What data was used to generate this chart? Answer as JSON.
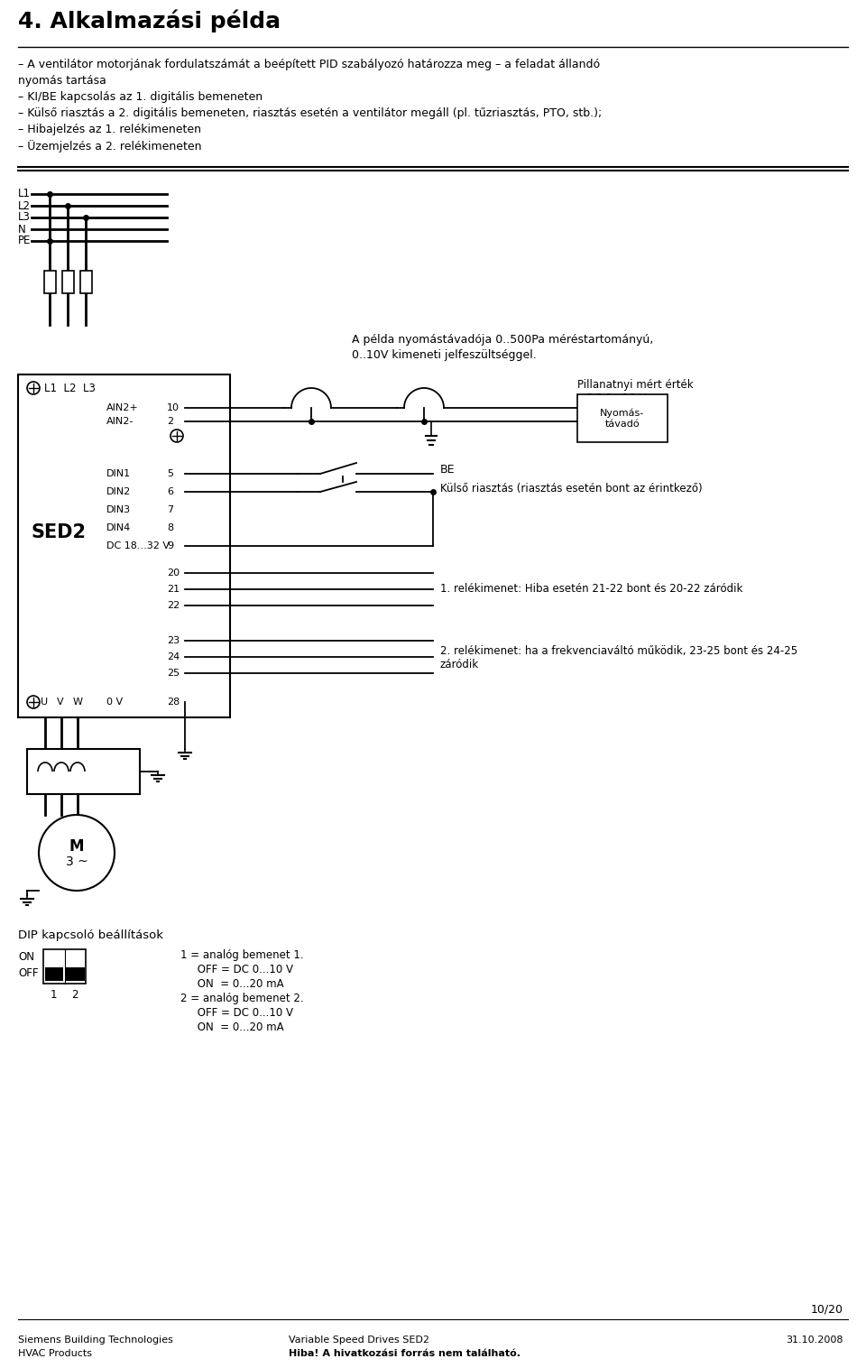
{
  "title": "4. Alkalmazási példa",
  "title_fontsize": 18,
  "background_color": "#ffffff",
  "text_color": "#000000",
  "intro_lines": [
    "– A ventilátor motorjának fordulatszámát a beépített PID szabályozó határozza meg – a feladat állandó",
    "nyomás tartása",
    "– KI/BE kapcsolás az 1. digitális bemeneten",
    "– Külső riasztás a 2. digitális bemeneten, riasztás esetén a ventilátor megáll (pl. tűzriasztás, PTO, stb.);",
    "– Hibajelzés az 1. relékimeneten",
    "– Üzemjelzés a 2. relékimeneten"
  ],
  "pressure_note_line1": "A példa nyomástávadója 0..500Pa méréstartományú,",
  "pressure_note_line2": "0..10V kimeneti jelfeszültséggel.",
  "pillanatnyi_text": "Pillanatnyi mért érték",
  "dc_text": "DC 0...10 V",
  "nyomas_text": "Nyomás-\ntávadó",
  "be_text": "BE",
  "kulso_text": "Külső riasztás (riasztás esetén bont az érintkező)",
  "relay1_text": "1. relékimenet: Hiba esetén 21-22 bont és 20-22 záródik",
  "relay2_text": "2. relékimenet: ha a frekvenciaváltó működik, 23-25 bont és 24-25",
  "relay2_text2": "záródik",
  "sed2_label": "SED2",
  "dip_title": "DIP kapcsoló beállítások",
  "dip_on": "ON",
  "dip_off": "OFF",
  "dip_1": "1",
  "dip_2": "2",
  "dip_text_line1": "1 = analóg bemenet 1.",
  "dip_text_line2": "     OFF = DC 0...10 V",
  "dip_text_line3": "     ON  = 0...20 mA",
  "dip_text_line4": "2 = analóg bemenet 2.",
  "dip_text_line5": "     OFF = DC 0...10 V",
  "dip_text_line6": "     ON  = 0...20 mA",
  "page_number": "10/20",
  "footer_left1": "Siemens Building Technologies",
  "footer_left2": "HVAC Products",
  "footer_center1": "Variable Speed Drives SED2",
  "footer_center2": "Hiba! A hivatkozási forrás nem található.",
  "footer_right": "31.10.2008",
  "motor_label1": "M",
  "motor_label2": "3 ~"
}
